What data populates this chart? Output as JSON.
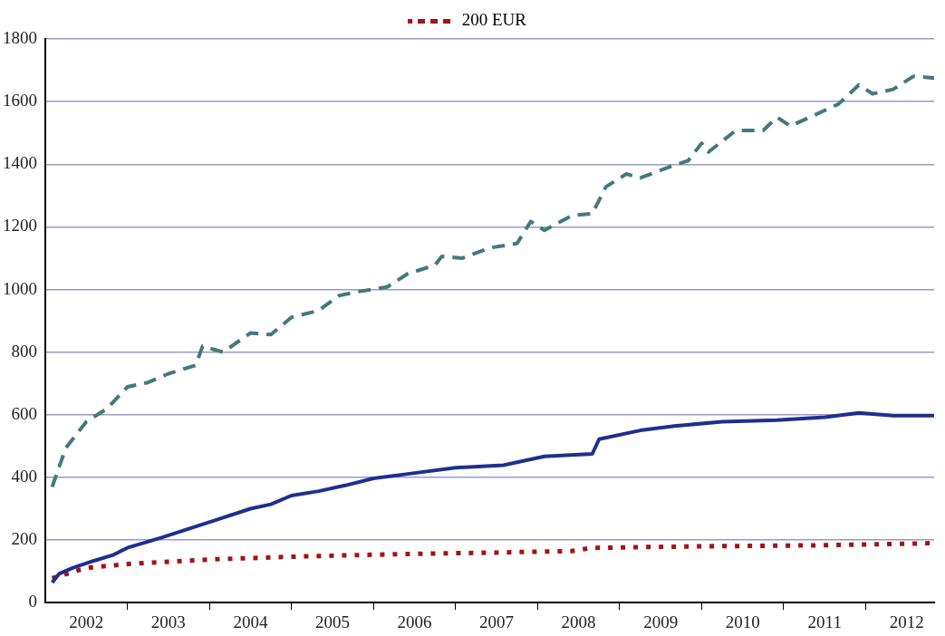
{
  "chart_data": {
    "type": "line",
    "legend": "top",
    "grid": "y",
    "ylim": [
      0,
      1800
    ],
    "yticks": [
      0,
      200,
      400,
      600,
      800,
      1000,
      1200,
      1400,
      1600,
      1800
    ],
    "xlim": [
      "2002-01",
      "2012-11"
    ],
    "xticks": [
      {
        "value": "2002-07",
        "label": "2002"
      },
      {
        "value": "2003-01",
        "label": null
      },
      {
        "value": "2003-07",
        "label": "2003"
      },
      {
        "value": "2004-01",
        "label": null
      },
      {
        "value": "2004-07",
        "label": "2004"
      },
      {
        "value": "2005-01",
        "label": null
      },
      {
        "value": "2005-07",
        "label": "2005"
      },
      {
        "value": "2006-01",
        "label": null
      },
      {
        "value": "2006-07",
        "label": "2006"
      },
      {
        "value": "2007-01",
        "label": null
      },
      {
        "value": "2007-07",
        "label": "2007"
      },
      {
        "value": "2008-01",
        "label": null
      },
      {
        "value": "2008-07",
        "label": "2008"
      },
      {
        "value": "2009-01",
        "label": null
      },
      {
        "value": "2009-07",
        "label": "2009"
      },
      {
        "value": "2010-01",
        "label": null
      },
      {
        "value": "2010-07",
        "label": "2010"
      },
      {
        "value": "2011-01",
        "label": null
      },
      {
        "value": "2011-07",
        "label": "2011"
      },
      {
        "value": "2012-01",
        "label": null
      },
      {
        "value": "2012-07",
        "label": "2012"
      }
    ],
    "marker": "none",
    "series": [
      {
        "color": "#44797b",
        "line_style": "dashed",
        "x": [
          "2002-02",
          "2002-04",
          "2002-07",
          "2002-10",
          "2003-01",
          "2003-04",
          "2003-07",
          "2003-11",
          "2003-12",
          "2004-03",
          "2004-07",
          "2004-10",
          "2005-01",
          "2005-05",
          "2005-08",
          "2005-11",
          "2006-03",
          "2006-06",
          "2006-10",
          "2006-11",
          "2007-02",
          "2007-06",
          "2007-10",
          "2007-12",
          "2008-02",
          "2008-06",
          "2008-09",
          "2008-11",
          "2009-02",
          "2009-04",
          "2009-09",
          "2009-11",
          "2010-01",
          "2010-02",
          "2010-06",
          "2010-10",
          "2010-12",
          "2011-02",
          "2011-09",
          "2011-12",
          "2012-02",
          "2012-05",
          "2012-08",
          "2012-11"
        ],
        "values": [
          370,
          494,
          578,
          619,
          689,
          703,
          731,
          758,
          819,
          800,
          861,
          856,
          911,
          933,
          981,
          994,
          1008,
          1050,
          1078,
          1106,
          1100,
          1133,
          1147,
          1217,
          1189,
          1236,
          1242,
          1328,
          1369,
          1356,
          1397,
          1411,
          1467,
          1439,
          1508,
          1508,
          1550,
          1522,
          1592,
          1653,
          1625,
          1639,
          1681,
          1675
        ]
      },
      {
        "color": "#1f2f8f",
        "line_style": "solid",
        "x": [
          "2002-02",
          "2002-03",
          "2002-05",
          "2002-08",
          "2002-11",
          "2003-01",
          "2003-06",
          "2003-10",
          "2004-02",
          "2004-07",
          "2004-10",
          "2005-01",
          "2005-05",
          "2005-09",
          "2006-01",
          "2006-06",
          "2007-01",
          "2007-08",
          "2008-02",
          "2008-09",
          "2008-10",
          "2009-04",
          "2009-09",
          "2010-04",
          "2010-12",
          "2011-07",
          "2011-12",
          "2012-05",
          "2012-11"
        ],
        "values": [
          64,
          92,
          111,
          133,
          153,
          175,
          208,
          236,
          264,
          300,
          314,
          342,
          356,
          375,
          397,
          411,
          431,
          439,
          467,
          475,
          522,
          550,
          564,
          578,
          583,
          592,
          606,
          597,
          597
        ]
      },
      {
        "name": "200 EUR",
        "color": "#a01414",
        "line_style": "dotted",
        "x": [
          "2002-02",
          "2002-07",
          "2003-02",
          "2004-01",
          "2005-03",
          "2006-05",
          "2007-07",
          "2008-06",
          "2008-09",
          "2010-01",
          "2011-06",
          "2012-11"
        ],
        "values": [
          78,
          111,
          125,
          138,
          148,
          155,
          160,
          165,
          175,
          180,
          183,
          190
        ]
      }
    ]
  }
}
